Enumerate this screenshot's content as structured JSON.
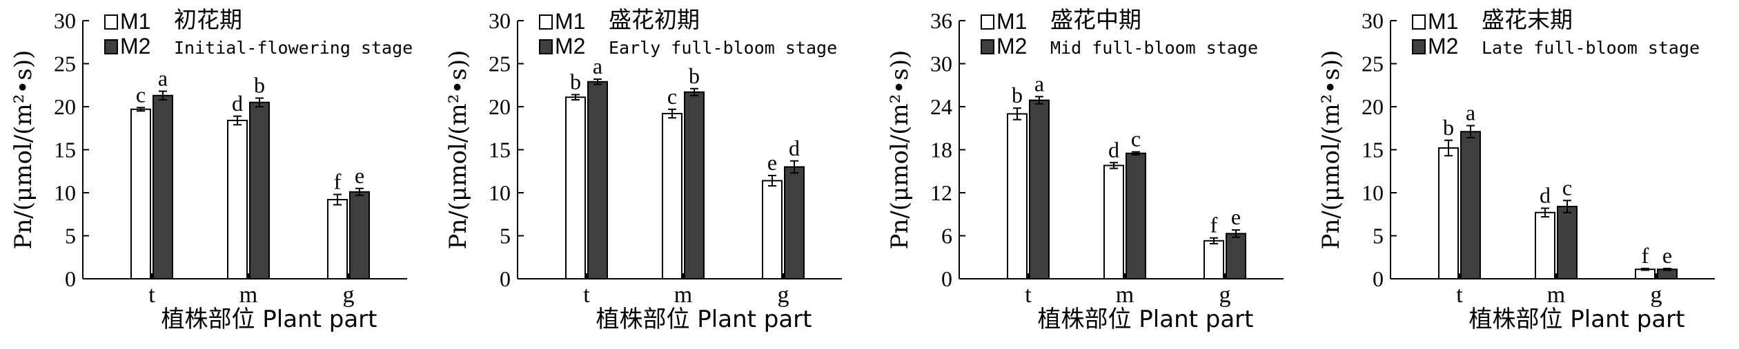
{
  "colors": {
    "m1": "#ffffff",
    "m2": "#3f3f3f",
    "axis": "#000000"
  },
  "chart_data": [
    {
      "type": "bar",
      "title": "初花期",
      "subtitle": "Initial-flowering stage",
      "ylabel": "Pn/(μmol/(m²•s))",
      "xlabel": "植株部位 Plant part",
      "categories": [
        "t",
        "m",
        "g"
      ],
      "ylim": [
        0,
        30
      ],
      "yticks": [
        "0",
        "5",
        "10",
        "15",
        "20",
        "25",
        "30"
      ],
      "legend_position": "top-left",
      "series": [
        {
          "name": "M1",
          "values": [
            19.7,
            18.4,
            9.2
          ],
          "errors": [
            0.2,
            0.5,
            0.6
          ],
          "letters": [
            "c",
            "d",
            "f"
          ]
        },
        {
          "name": "M2",
          "values": [
            21.3,
            20.5,
            10.1
          ],
          "errors": [
            0.5,
            0.5,
            0.4
          ],
          "letters": [
            "a",
            "b",
            "e"
          ]
        }
      ]
    },
    {
      "type": "bar",
      "title": "盛花初期",
      "subtitle": "Early full-bloom stage",
      "ylabel": "Pn/(μmol/(m²•s))",
      "xlabel": "植株部位 Plant part",
      "categories": [
        "t",
        "m",
        "g"
      ],
      "ylim": [
        0,
        30
      ],
      "yticks": [
        "0",
        "5",
        "10",
        "15",
        "20",
        "25",
        "30"
      ],
      "legend_position": "top-left",
      "series": [
        {
          "name": "M1",
          "values": [
            21.1,
            19.2,
            11.4
          ],
          "errors": [
            0.3,
            0.5,
            0.6
          ],
          "letters": [
            "b",
            "c",
            "e"
          ]
        },
        {
          "name": "M2",
          "values": [
            22.9,
            21.7,
            13.0
          ],
          "errors": [
            0.3,
            0.4,
            0.7
          ],
          "letters": [
            "a",
            "b",
            "d"
          ]
        }
      ]
    },
    {
      "type": "bar",
      "title": "盛花中期",
      "subtitle": "Mid full-bloom stage",
      "ylabel": "Pn/(μmol/(m²•s))",
      "xlabel": "植株部位 Plant part",
      "categories": [
        "t",
        "m",
        "g"
      ],
      "ylim": [
        0,
        36
      ],
      "yticks": [
        "0",
        "6",
        "12",
        "18",
        "24",
        "30",
        "36"
      ],
      "legend_position": "top-left",
      "series": [
        {
          "name": "M1",
          "values": [
            23.0,
            15.8,
            5.3
          ],
          "errors": [
            0.8,
            0.4,
            0.4
          ],
          "letters": [
            "b",
            "d",
            "f"
          ]
        },
        {
          "name": "M2",
          "values": [
            24.9,
            17.5,
            6.3
          ],
          "errors": [
            0.5,
            0.2,
            0.5
          ],
          "letters": [
            "a",
            "c",
            "e"
          ]
        }
      ]
    },
    {
      "type": "bar",
      "title": "盛花末期",
      "subtitle": "Late full-bloom stage",
      "ylabel": "Pn/(μmol/(m²•s))",
      "xlabel": "植株部位 Plant part",
      "categories": [
        "t",
        "m",
        "g"
      ],
      "ylim": [
        0,
        30
      ],
      "yticks": [
        "0",
        "5",
        "10",
        "15",
        "20",
        "25",
        "30"
      ],
      "legend_position": "top-left",
      "series": [
        {
          "name": "M1",
          "values": [
            15.2,
            7.7,
            1.1
          ],
          "errors": [
            0.9,
            0.5,
            0.1
          ],
          "letters": [
            "b",
            "d",
            "f"
          ]
        },
        {
          "name": "M2",
          "values": [
            17.1,
            8.4,
            1.1
          ],
          "errors": [
            0.7,
            0.7,
            0.1
          ],
          "letters": [
            "a",
            "c",
            "e"
          ]
        }
      ]
    }
  ]
}
